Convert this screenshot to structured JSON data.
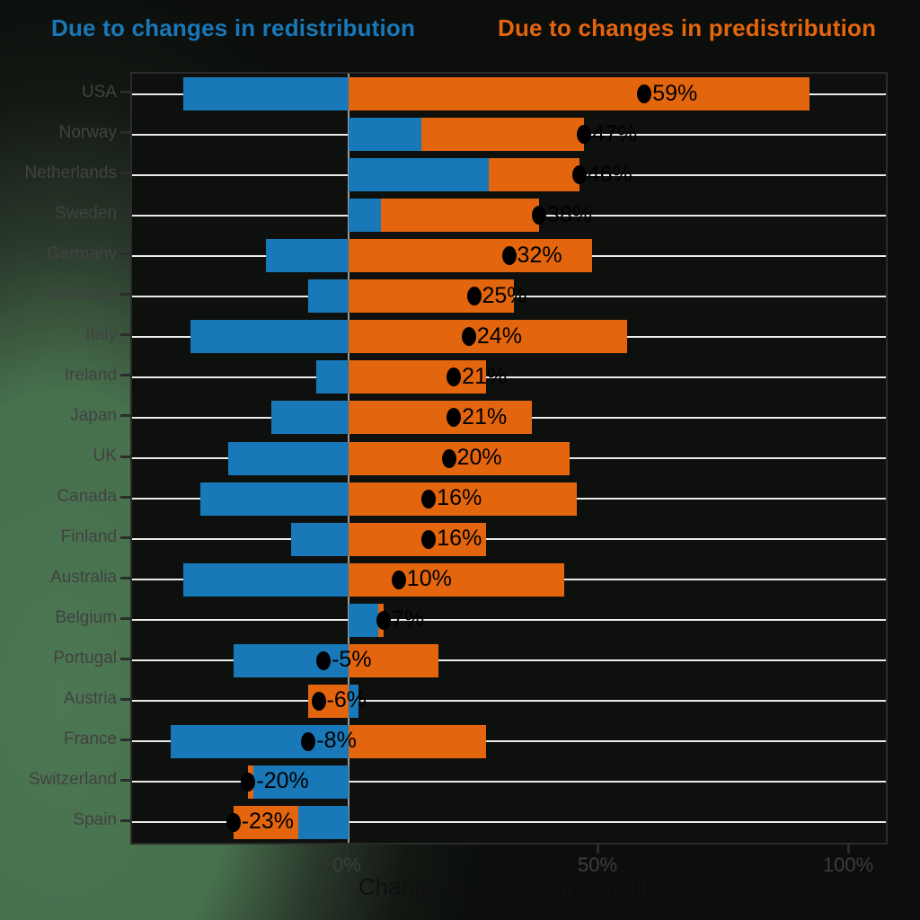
{
  "legend": {
    "redistribution": "Due to changes in redistribution",
    "predistribution": "Due to changes in predistribution"
  },
  "colors": {
    "redistribution_blue": "#1878b8",
    "predistribution_orange": "#e3650d",
    "background_green": "#47704d",
    "panel_fill": "#0d100d",
    "gridline_white": "#ececec",
    "zero_line_gray": "#9a9a9a",
    "axis_dark": "#2c2c2c",
    "label_gray": "#424242",
    "dot_black": "#000000"
  },
  "chart_data": {
    "type": "bar",
    "orientation": "horizontal",
    "stacked": true,
    "categories": [
      "USA",
      "Norway",
      "Netherlands",
      "Sweden",
      "Germany",
      "Denmark",
      "Italy",
      "Ireland",
      "Japan",
      "UK",
      "Canada",
      "Finland",
      "Australia",
      "Belgium",
      "Portugal",
      "Austria",
      "France",
      "Switzerland",
      "Spain"
    ],
    "series": [
      {
        "name": "Due to changes in redistribution",
        "color": "#1878b8",
        "values": [
          -33,
          14.5,
          28,
          6.5,
          -16.5,
          -8,
          -31.5,
          -6.5,
          -15.5,
          -24,
          -29.5,
          -11.5,
          -33,
          6,
          -23,
          2,
          -35.5,
          -19,
          -10
        ]
      },
      {
        "name": "Due to changes in predistribution",
        "color": "#e3650d",
        "values": [
          92,
          32.5,
          18,
          31.5,
          48.5,
          33,
          55.5,
          27.5,
          36.5,
          44,
          45.5,
          27.5,
          43,
          1,
          18,
          -8,
          27.5,
          -1,
          -13
        ]
      }
    ],
    "net_values": [
      59,
      47,
      46,
      38,
      32,
      25,
      24,
      21,
      21,
      20,
      16,
      16,
      10,
      7,
      -5,
      -6,
      -8,
      -20,
      -23
    ],
    "net_labels": [
      "59%",
      "47%",
      "46%",
      "38%",
      "32%",
      "25%",
      "24%",
      "21%",
      "21%",
      "20%",
      "16%",
      "16%",
      "10%",
      "7%",
      "-5%",
      "-6%",
      "-8%",
      "-20%",
      "-23%"
    ],
    "x_ticks": [
      {
        "value": 0,
        "label": "0%"
      },
      {
        "value": 50,
        "label": "50%"
      },
      {
        "value": 100,
        "label": "100%"
      }
    ],
    "xlim": [
      -43.2,
      108
    ],
    "xlabel": "Change in post-tax inequality",
    "grid": "horizontal-white, zero-line-gray",
    "legend_position": "top-as-colored-text"
  }
}
